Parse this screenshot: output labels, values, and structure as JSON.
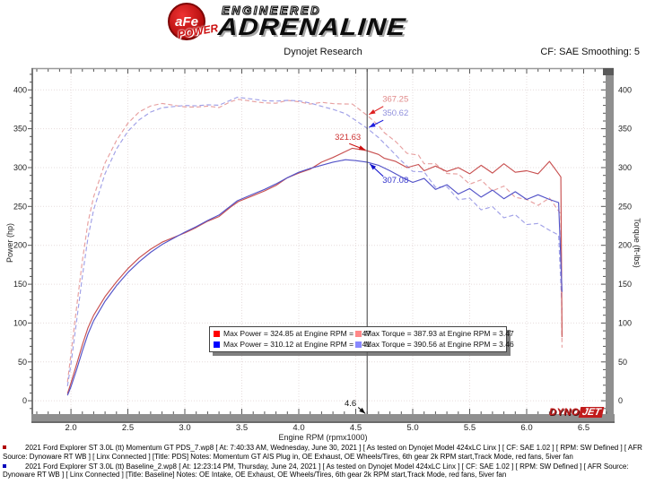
{
  "header": {
    "brand": {
      "circle_text": "aFe",
      "power": "POWER",
      "engineered": "ENGINEERED",
      "adrenaline": "ADRENALINE"
    },
    "subtitle": "Dynojet Research",
    "cf_label": "CF: SAE Smoothing: 5"
  },
  "chart_data": {
    "type": "line",
    "xlabel": "Engine RPM (rpmx1000)",
    "ylabel_left": "Power (hp)",
    "ylabel_right": "Torque (ft-lbs)",
    "xlim": [
      1.661,
      6.74
    ],
    "ylim": [
      -16,
      428
    ],
    "grid": "dotted",
    "legend_position": "center-bottom",
    "x_major_ticks": [
      2.0,
      2.5,
      3.0,
      3.5,
      4.0,
      4.5,
      5.0,
      5.5,
      6.0,
      6.5
    ],
    "x_tick_labels": [
      "2.0",
      "2.5",
      "3.0",
      "3.5",
      "4.0",
      "4.5",
      "5.0",
      "5.5",
      "6.0",
      "6.5"
    ],
    "x_minor_step": 0.1,
    "y_major_ticks": [
      0,
      50,
      100,
      150,
      200,
      250,
      300,
      350,
      400
    ],
    "y_minor_step": 10,
    "cursor": {
      "rpm": 4.6,
      "label": "4.6"
    },
    "series": [
      {
        "id": "pds-torque",
        "name": "Momentum GT PDS Torque (ft-lbs)",
        "color": "#e7a0a0",
        "style": "dashed",
        "rpm": [
          1.97,
          2.0,
          2.05,
          2.1,
          2.15,
          2.2,
          2.3,
          2.4,
          2.5,
          2.6,
          2.7,
          2.8,
          2.9,
          3.0,
          3.1,
          3.2,
          3.3,
          3.4,
          3.47,
          3.6,
          3.7,
          3.8,
          3.9,
          4.0,
          4.1,
          4.2,
          4.3,
          4.4,
          4.47,
          4.55,
          4.6,
          4.7,
          4.75,
          4.85,
          4.95,
          5.05,
          5.1,
          5.2,
          5.3,
          5.4,
          5.5,
          5.6,
          5.7,
          5.8,
          5.9,
          6.0,
          6.1,
          6.2,
          6.25,
          6.3,
          6.31
        ],
        "values": [
          24.0,
          60.4,
          120.4,
          180.1,
          229.6,
          262.6,
          306.0,
          334.8,
          357.1,
          371.7,
          379.3,
          382.6,
          380.3,
          378.1,
          377.8,
          379.1,
          377.2,
          384.7,
          387.9,
          385.1,
          383.2,
          382.8,
          386.5,
          384.7,
          381.8,
          383.9,
          382.3,
          381.9,
          381.7,
          372.8,
          367.25,
          354.2,
          345.0,
          333.6,
          318.3,
          316.1,
          304.9,
          305.0,
          292.4,
          291.8,
          278.8,
          284.2,
          270.0,
          276.2,
          261.7,
          259.1,
          251.4,
          260.9,
          250.4,
          240.1,
          68.3
        ]
      },
      {
        "id": "baseline-torque",
        "name": "Baseline Torque (ft-lbs)",
        "color": "#a0a0e7",
        "style": "dashed",
        "rpm": [
          1.97,
          2.0,
          2.05,
          2.1,
          2.15,
          2.2,
          2.3,
          2.4,
          2.5,
          2.6,
          2.7,
          2.8,
          2.9,
          3.0,
          3.1,
          3.2,
          3.3,
          3.46,
          3.6,
          3.7,
          3.8,
          3.9,
          4.0,
          4.1,
          4.2,
          4.3,
          4.41,
          4.5,
          4.6,
          4.7,
          4.8,
          4.9,
          5.0,
          5.1,
          5.2,
          5.3,
          5.4,
          5.5,
          5.6,
          5.7,
          5.8,
          5.9,
          6.0,
          6.1,
          6.2,
          6.28,
          6.31
        ],
        "values": [
          18.7,
          47.3,
          102.5,
          160.1,
          210.1,
          245.9,
          292.3,
          323.9,
          346.6,
          361.6,
          371.5,
          377.0,
          378.5,
          379.9,
          379.5,
          380.8,
          380.3,
          390.56,
          388.0,
          386.1,
          385.6,
          386.5,
          386.0,
          383.0,
          378.9,
          375.0,
          369.4,
          360.6,
          350.62,
          338.6,
          323.9,
          308.7,
          295.2,
          294.5,
          274.7,
          275.5,
          258.7,
          260.7,
          245.7,
          249.7,
          235.4,
          239.5,
          226.7,
          228.2,
          219.4,
          213.3,
          116.7
        ]
      },
      {
        "id": "pds-power",
        "name": "Momentum GT PDS Power (hp)",
        "color": "#c85050",
        "style": "solid",
        "rpm": [
          1.97,
          2.0,
          2.05,
          2.1,
          2.15,
          2.2,
          2.3,
          2.4,
          2.5,
          2.6,
          2.7,
          2.8,
          2.9,
          3.0,
          3.1,
          3.2,
          3.3,
          3.4,
          3.47,
          3.6,
          3.7,
          3.8,
          3.9,
          4.0,
          4.1,
          4.2,
          4.3,
          4.4,
          4.47,
          4.55,
          4.6,
          4.7,
          4.75,
          4.85,
          4.95,
          5.05,
          5.1,
          5.2,
          5.3,
          5.4,
          5.5,
          5.6,
          5.7,
          5.8,
          5.9,
          6.0,
          6.1,
          6.2,
          6.25,
          6.3,
          6.31
        ],
        "values": [
          9,
          23,
          47,
          72,
          94,
          110,
          134,
          153,
          170,
          184,
          195,
          204,
          210,
          216,
          223,
          231,
          237,
          249,
          256.3,
          264,
          270,
          277,
          287,
          293,
          298,
          307,
          313,
          320,
          324.85,
          323,
          321.63,
          317,
          312,
          308,
          300,
          304,
          296,
          302,
          295,
          300,
          292,
          303,
          293,
          305,
          294,
          296,
          292,
          308,
          298,
          288,
          82
        ]
      },
      {
        "id": "baseline-power",
        "name": "Baseline Power (hp)",
        "color": "#5353c8",
        "style": "solid",
        "rpm": [
          1.97,
          2.0,
          2.05,
          2.1,
          2.15,
          2.2,
          2.3,
          2.4,
          2.5,
          2.6,
          2.7,
          2.8,
          2.9,
          3.0,
          3.1,
          3.2,
          3.3,
          3.46,
          3.6,
          3.7,
          3.8,
          3.9,
          4.0,
          4.1,
          4.2,
          4.3,
          4.41,
          4.5,
          4.6,
          4.7,
          4.8,
          4.9,
          5.0,
          5.1,
          5.2,
          5.3,
          5.4,
          5.5,
          5.6,
          5.7,
          5.8,
          5.9,
          6.0,
          6.1,
          6.2,
          6.28,
          6.31
        ],
        "values": [
          7,
          18,
          40,
          64,
          86,
          103,
          128,
          148,
          165,
          179,
          191,
          201,
          209,
          217,
          224,
          232,
          239,
          257.3,
          266,
          272,
          279,
          287,
          294,
          299,
          303,
          307,
          310.12,
          309,
          307.08,
          303,
          296,
          288,
          281,
          286,
          272,
          278,
          266,
          273,
          262,
          271,
          260,
          269,
          259,
          265,
          259,
          255,
          140
        ]
      }
    ],
    "annotations": [
      {
        "label": "367.25",
        "value": 367.25,
        "color": "#e08888",
        "arrow": "#dd2020",
        "anchor": "start",
        "text_dx": 17,
        "text_dy": -15,
        "line": [
          18,
          -10,
          2,
          -1
        ]
      },
      {
        "label": "350.62",
        "value": 350.62,
        "color": "#9090dd",
        "arrow": "#2020dd",
        "anchor": "start",
        "text_dx": 17,
        "text_dy": -14,
        "line": [
          18,
          -9,
          2,
          -1
        ]
      },
      {
        "label": "321.63",
        "value": 321.63,
        "color": "#cc3333",
        "arrow": "#cc1111",
        "anchor": "end",
        "text_dx": -7,
        "text_dy": -12,
        "line": [
          -20,
          -8,
          -2,
          -1
        ]
      },
      {
        "label": "307.08",
        "value": 307.08,
        "color": "#3333cc",
        "arrow": "#1111cc",
        "anchor": "start",
        "text_dx": 17,
        "text_dy": 23,
        "line": [
          18,
          16,
          3,
          2
        ]
      }
    ]
  },
  "legend": {
    "items": [
      {
        "color": "#ff0000",
        "text": "Max Power = 324.85 at Engine RPM = 4.47"
      },
      {
        "color": "#ff8888",
        "text": "Max Torque = 387.93 at Engine RPM = 3.47"
      },
      {
        "color": "#0000ff",
        "text": "Max Power = 310.12 at Engine RPM = 4.41"
      },
      {
        "color": "#8888ff",
        "text": "Max Torque = 390.56 at Engine RPM = 3.46"
      }
    ]
  },
  "watermark": {
    "dyno": "DYNO",
    "jet": "JET"
  },
  "footer": {
    "entries": [
      {
        "bullet_color": "#b00000",
        "text": "2021 Ford Explorer ST 3.0L (tt) Momentum GT PDS_7.wp8 [ At: 7:40:33 AM, Wednesday, June 30, 2021 ] [ As tested on Dynojet Model 424xLC Linx ] [ CF: SAE 1.02 ] [ RPM: SW Defined ] [ AFR Source: Dynoware RT WB ] [ Linx Connected ] [Title: PDS]  Notes: Momentum GT AIS Plug in, OE Exhaust, OE Wheels/Tires, 6th gear 2k RPM start,Track Mode, red fans, 5iver fan"
      },
      {
        "bullet_color": "#0000bb",
        "text": "2021 Ford Explorer ST 3.0L (tt) Baseline_2.wp8 [ At: 12:23:14 PM, Thursday, June 24, 2021 ] [ As tested on Dynojet Model 424xLC Linx ] [ CF: SAE 1.02 ] [ RPM: SW Defined ] [ AFR Source: Dynoware RT WB ] [ Linx Connected ] [Title: Baseline]  Notes: OE Intake, OE Exhaust, OE Wheels/Tires, 6th gear 2k RPM start,Track Mode, red fans, 5iver fan"
      }
    ]
  }
}
